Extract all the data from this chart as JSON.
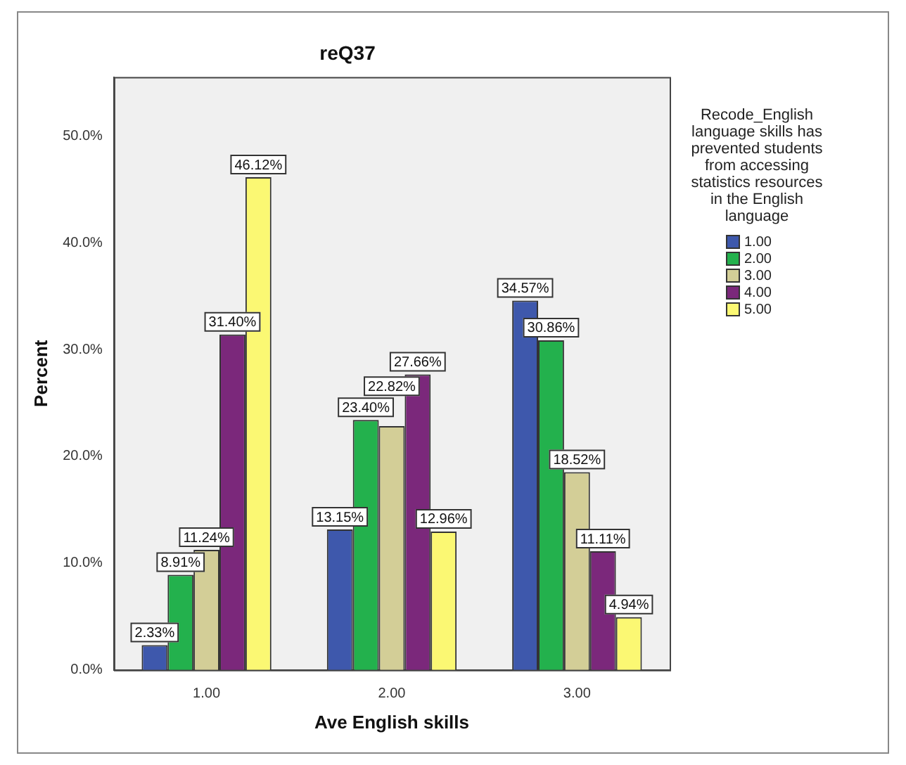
{
  "chart_data": {
    "type": "bar",
    "title": "reQ37",
    "xlabel": "Ave English skills",
    "ylabel": "Percent",
    "legend_title": "Recode_English language skills has prevented students from accessing statistics resources in the English language",
    "legend": "right",
    "grid": false,
    "categories": [
      "1.00",
      "2.00",
      "3.00"
    ],
    "ylim": [
      0,
      55.5
    ],
    "yticks": [
      {
        "value": 0,
        "label": "0.0%"
      },
      {
        "value": 10,
        "label": "10.0%"
      },
      {
        "value": 20,
        "label": "20.0%"
      },
      {
        "value": 30,
        "label": "30.0%"
      },
      {
        "value": 40,
        "label": "40.0%"
      },
      {
        "value": 50,
        "label": "50.0%"
      }
    ],
    "series": [
      {
        "name": "1.00",
        "color": "#3e58ac",
        "values": [
          2.33,
          13.15,
          34.57
        ],
        "value_labels": [
          "2.33%",
          "13.15%",
          "34.57%"
        ]
      },
      {
        "name": "2.00",
        "color": "#23b14d",
        "values": [
          8.91,
          23.4,
          30.86
        ],
        "value_labels": [
          "8.91%",
          "23.40%",
          "30.86%"
        ]
      },
      {
        "name": "3.00",
        "color": "#d3ce97",
        "values": [
          11.24,
          22.82,
          18.52
        ],
        "value_labels": [
          "11.24%",
          "22.82%",
          "18.52%"
        ]
      },
      {
        "name": "4.00",
        "color": "#7b287b",
        "values": [
          31.4,
          27.66,
          11.11
        ],
        "value_labels": [
          "31.40%",
          "27.66%",
          "11.11%"
        ]
      },
      {
        "name": "5.00",
        "color": "#fbf873",
        "values": [
          46.12,
          12.96,
          4.94
        ],
        "value_labels": [
          "46.12%",
          "12.96%",
          "4.94%"
        ]
      }
    ]
  }
}
